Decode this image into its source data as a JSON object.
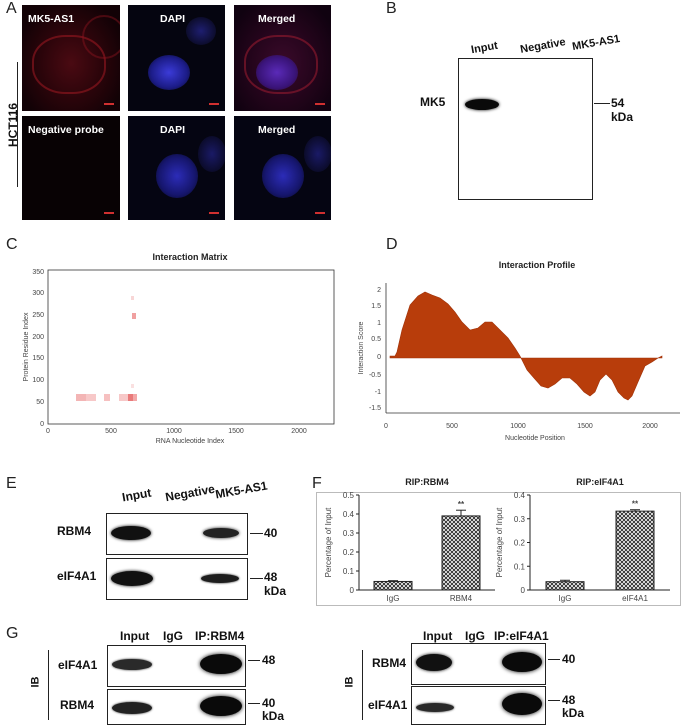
{
  "panel_labels": {
    "a": "A",
    "b": "B",
    "c": "C",
    "d": "D",
    "e": "E",
    "f": "F",
    "g": "G"
  },
  "panel_a": {
    "row_label": "HCT116",
    "top_row": [
      "MK5-AS1",
      "DAPI",
      "Merged"
    ],
    "bottom_row": [
      "Negative probe",
      "DAPI",
      "Merged"
    ]
  },
  "panel_b": {
    "lanes": [
      "Input",
      "Negative",
      "MK5-AS1"
    ],
    "row_label": "MK5",
    "mw": "54",
    "unit": "kDa"
  },
  "panel_c": {
    "title": "Interaction Matrix",
    "xlabel": "RNA Nucleotide Index",
    "ylabel": "Protein Residue Index",
    "xticks": [
      "0",
      "500",
      "1000",
      "1500",
      "2000"
    ],
    "yticks": [
      "0",
      "50",
      "100",
      "150",
      "200",
      "250",
      "300",
      "350"
    ]
  },
  "panel_d": {
    "title": "Interaction Profile",
    "xlabel": "Nucleotide Position",
    "ylabel": "Interaction Score",
    "xticks": [
      "0",
      "500",
      "1000",
      "1500",
      "2000"
    ],
    "yticks": [
      "2",
      "1.5",
      "1",
      "0.5",
      "0",
      "-0.5",
      "-1",
      "-1.5"
    ]
  },
  "panel_e": {
    "lanes": [
      "Input",
      "Negative",
      "MK5-AS1"
    ],
    "rows": [
      "RBM4",
      "eIF4A1"
    ],
    "mw": [
      "40",
      "48"
    ],
    "unit": "kDa"
  },
  "chart_data": [
    {
      "type": "bar",
      "title": "RIP:RBM4",
      "ylabel": "Percentage of Input",
      "categories": [
        "IgG",
        "RBM4"
      ],
      "values": [
        0.045,
        0.39
      ],
      "errors": [
        0.004,
        0.03
      ],
      "significance": [
        "",
        "**"
      ],
      "ylim": [
        0,
        0.5
      ],
      "yticks": [
        "0",
        "0.1",
        "0.2",
        "0.3",
        "0.4",
        "0.5"
      ]
    },
    {
      "type": "bar",
      "title": "RIP:eIF4A1",
      "ylabel": "Percentage of Input",
      "categories": [
        "IgG",
        "eIF4A1"
      ],
      "values": [
        0.035,
        0.332
      ],
      "errors": [
        0.006,
        0.006
      ],
      "significance": [
        "",
        "**"
      ],
      "ylim": [
        0,
        0.4
      ],
      "yticks": [
        "0",
        "0.1",
        "0.2",
        "0.3",
        "0.4"
      ]
    }
  ],
  "panel_g": {
    "left": {
      "lanes": [
        "Input",
        "IgG",
        "IP:RBM4"
      ],
      "rows": [
        "eIF4A1",
        "RBM4"
      ],
      "mw": [
        "48",
        "40"
      ],
      "unit": "kDa",
      "ib": "IB"
    },
    "right": {
      "lanes": [
        "Input",
        "IgG",
        "IP:eIF4A1"
      ],
      "rows": [
        "RBM4",
        "eIF4A1"
      ],
      "mw": [
        "40",
        "48"
      ],
      "unit": "kDa",
      "ib": "IB"
    }
  }
}
